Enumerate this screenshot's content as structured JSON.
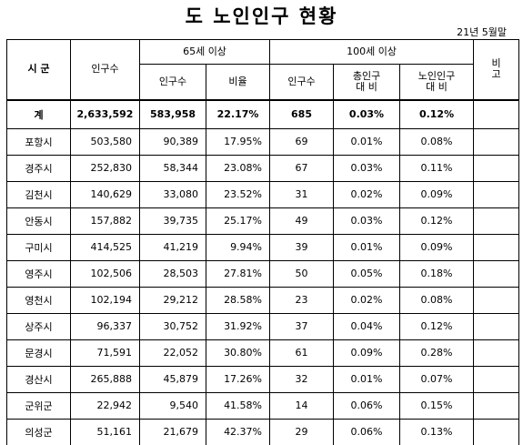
{
  "title": "도 노인인구 현황",
  "date": "21년 5월말",
  "headers": {
    "city": "시  군",
    "population": "인구수",
    "over65": "65세 이상",
    "over65_pop": "인구수",
    "over65_ratio": "비율",
    "over100": "100세 이상",
    "over100_pop": "인구수",
    "over100_total_ratio_1": "총인구",
    "over100_total_ratio_2": "대  비",
    "over100_elder_ratio_1": "노인인구",
    "over100_elder_ratio_2": "대  비",
    "remarks": "비고"
  },
  "total": {
    "label": "계",
    "population": "2,633,592",
    "over65_pop": "583,958",
    "over65_ratio": "22.17%",
    "over100_pop": "685",
    "over100_total_ratio": "0.03%",
    "over100_elder_ratio": "0.12%"
  },
  "rows": [
    {
      "city": "포항시",
      "population": "503,580",
      "over65_pop": "90,389",
      "over65_ratio": "17.95%",
      "over100_pop": "69",
      "over100_total_ratio": "0.01%",
      "over100_elder_ratio": "0.08%"
    },
    {
      "city": "경주시",
      "population": "252,830",
      "over65_pop": "58,344",
      "over65_ratio": "23.08%",
      "over100_pop": "67",
      "over100_total_ratio": "0.03%",
      "over100_elder_ratio": "0.11%"
    },
    {
      "city": "김천시",
      "population": "140,629",
      "over65_pop": "33,080",
      "over65_ratio": "23.52%",
      "over100_pop": "31",
      "over100_total_ratio": "0.02%",
      "over100_elder_ratio": "0.09%"
    },
    {
      "city": "안동시",
      "population": "157,882",
      "over65_pop": "39,735",
      "over65_ratio": "25.17%",
      "over100_pop": "49",
      "over100_total_ratio": "0.03%",
      "over100_elder_ratio": "0.12%"
    },
    {
      "city": "구미시",
      "population": "414,525",
      "over65_pop": "41,219",
      "over65_ratio": "9.94%",
      "over100_pop": "39",
      "over100_total_ratio": "0.01%",
      "over100_elder_ratio": "0.09%"
    },
    {
      "city": "영주시",
      "population": "102,506",
      "over65_pop": "28,503",
      "over65_ratio": "27.81%",
      "over100_pop": "50",
      "over100_total_ratio": "0.05%",
      "over100_elder_ratio": "0.18%"
    },
    {
      "city": "영천시",
      "population": "102,194",
      "over65_pop": "29,212",
      "over65_ratio": "28.58%",
      "over100_pop": "23",
      "over100_total_ratio": "0.02%",
      "over100_elder_ratio": "0.08%"
    },
    {
      "city": "상주시",
      "population": "96,337",
      "over65_pop": "30,752",
      "over65_ratio": "31.92%",
      "over100_pop": "37",
      "over100_total_ratio": "0.04%",
      "over100_elder_ratio": "0.12%"
    },
    {
      "city": "문경시",
      "population": "71,591",
      "over65_pop": "22,052",
      "over65_ratio": "30.80%",
      "over100_pop": "61",
      "over100_total_ratio": "0.09%",
      "over100_elder_ratio": "0.28%"
    },
    {
      "city": "경산시",
      "population": "265,888",
      "over65_pop": "45,879",
      "over65_ratio": "17.26%",
      "over100_pop": "32",
      "over100_total_ratio": "0.01%",
      "over100_elder_ratio": "0.07%"
    },
    {
      "city": "군위군",
      "population": "22,942",
      "over65_pop": "9,540",
      "over65_ratio": "41.58%",
      "over100_pop": "14",
      "over100_total_ratio": "0.06%",
      "over100_elder_ratio": "0.15%"
    },
    {
      "city": "의성군",
      "population": "51,161",
      "over65_pop": "21,679",
      "over65_ratio": "42.37%",
      "over100_pop": "29",
      "over100_total_ratio": "0.06%",
      "over100_elder_ratio": "0.13%"
    }
  ]
}
